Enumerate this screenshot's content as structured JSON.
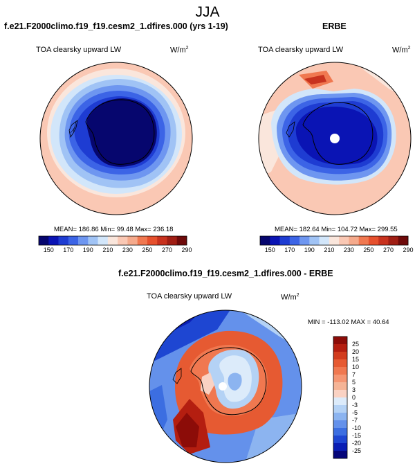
{
  "figure": {
    "season": "JJA",
    "left_panel": {
      "title": "f.e21.F2000climo.f19_f19.cesm2_1.dfires.000 (yrs 1-19)",
      "variable": "TOA clearsky upward LW",
      "units_base": "W/m",
      "units_exp": "2",
      "stats": "MEAN= 186.86  Min=  99.48  Max= 236.18",
      "mean": 186.86,
      "min": 99.48,
      "max": 236.18
    },
    "right_panel": {
      "title": "ERBE",
      "variable": "TOA clearsky upward LW",
      "units_base": "W/m",
      "units_exp": "2",
      "stats": "MEAN= 182.64  Min= 104.72  Max= 299.55",
      "mean": 182.64,
      "min": 104.72,
      "max": 299.55
    },
    "diff_panel": {
      "title": "f.e21.F2000climo.f19_f19.cesm2_1.dfires.000 - ERBE",
      "variable": "TOA clearsky upward LW",
      "units_base": "W/m",
      "units_exp": "2",
      "stats": "MIN = -113.02 MAX =  40.64",
      "min": -113.02,
      "max": 40.64
    },
    "abs_colorbar": {
      "tick_labels": [
        "150",
        "170",
        "190",
        "210",
        "230",
        "250",
        "270",
        "290"
      ],
      "colors": [
        "#06066e",
        "#0a14b4",
        "#1e3cd2",
        "#3c64e6",
        "#6e96f0",
        "#a0c3f5",
        "#d2e6fa",
        "#fae6dc",
        "#fac8b4",
        "#f5aa8c",
        "#f07850",
        "#e6502d",
        "#c8321e",
        "#a01e14",
        "#6e0a0a"
      ]
    },
    "diff_colorbar": {
      "tick_labels": [
        "25",
        "20",
        "15",
        "10",
        "7",
        "5",
        "3",
        "0",
        "-3",
        "-5",
        "-7",
        "-10",
        "-15",
        "-20",
        "-25"
      ],
      "colors": [
        "#8c0c08",
        "#b41e10",
        "#d23c1e",
        "#e65a32",
        "#f07850",
        "#f59673",
        "#f5b496",
        "#fad2c3",
        "#dcebfa",
        "#b4d2f5",
        "#8cb4f0",
        "#6491eb",
        "#3c6ee1",
        "#1e46d2",
        "#0a1eb4",
        "#06067a"
      ]
    }
  }
}
